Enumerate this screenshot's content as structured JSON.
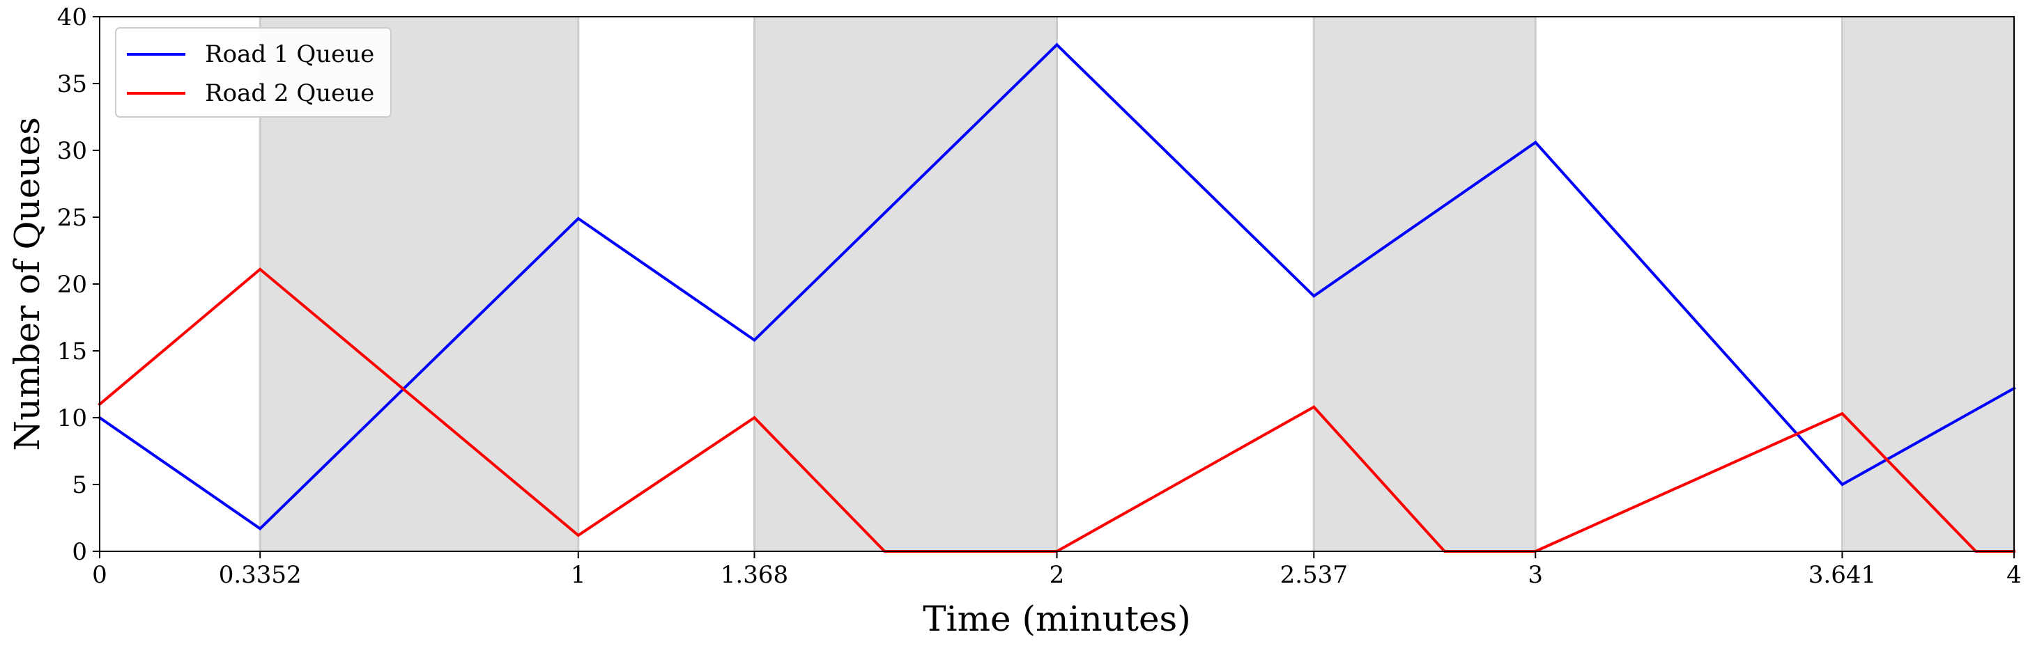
{
  "chart_data": {
    "type": "line",
    "title": "",
    "xlabel": "Time (minutes)",
    "ylabel": "Number of Queues",
    "xlim": [
      0,
      4
    ],
    "ylim": [
      0,
      40
    ],
    "grid": false,
    "legend_position": "top-left",
    "x_ticks": [
      0,
      0.3352,
      1,
      1.368,
      2,
      2.537,
      3,
      3.641,
      4
    ],
    "x_tick_labels": [
      "0",
      "0.3352",
      "1",
      "1.368",
      "2",
      "2.537",
      "3",
      "3.641",
      "4"
    ],
    "y_ticks": [
      0,
      5,
      10,
      15,
      20,
      25,
      30,
      35,
      40
    ],
    "y_tick_labels": [
      "0",
      "5",
      "10",
      "15",
      "20",
      "25",
      "30",
      "35",
      "40"
    ],
    "shaded_intervals": [
      [
        0.3352,
        1
      ],
      [
        1.368,
        2
      ],
      [
        2.537,
        3
      ],
      [
        3.641,
        4
      ]
    ],
    "shade_color": "#e0e0e0",
    "shade_edge_color": "#cccccc",
    "series": [
      {
        "name": "Road 1 Queue",
        "color": "#0000ff",
        "x": [
          0,
          0.3352,
          1,
          1.368,
          2,
          2.537,
          3,
          3.641,
          4
        ],
        "y": [
          10,
          1.7,
          24.9,
          15.8,
          37.9,
          19.1,
          30.6,
          5.0,
          12.2
        ]
      },
      {
        "name": "Road 2 Queue",
        "color": "#ff0000",
        "x": [
          0,
          0.3352,
          1,
          1.368,
          1.64,
          2,
          2.537,
          2.81,
          3,
          3.641,
          3.92,
          4
        ],
        "y": [
          11,
          21.1,
          1.2,
          10,
          0,
          0,
          10.8,
          0,
          0,
          10.3,
          0,
          0
        ]
      }
    ]
  }
}
